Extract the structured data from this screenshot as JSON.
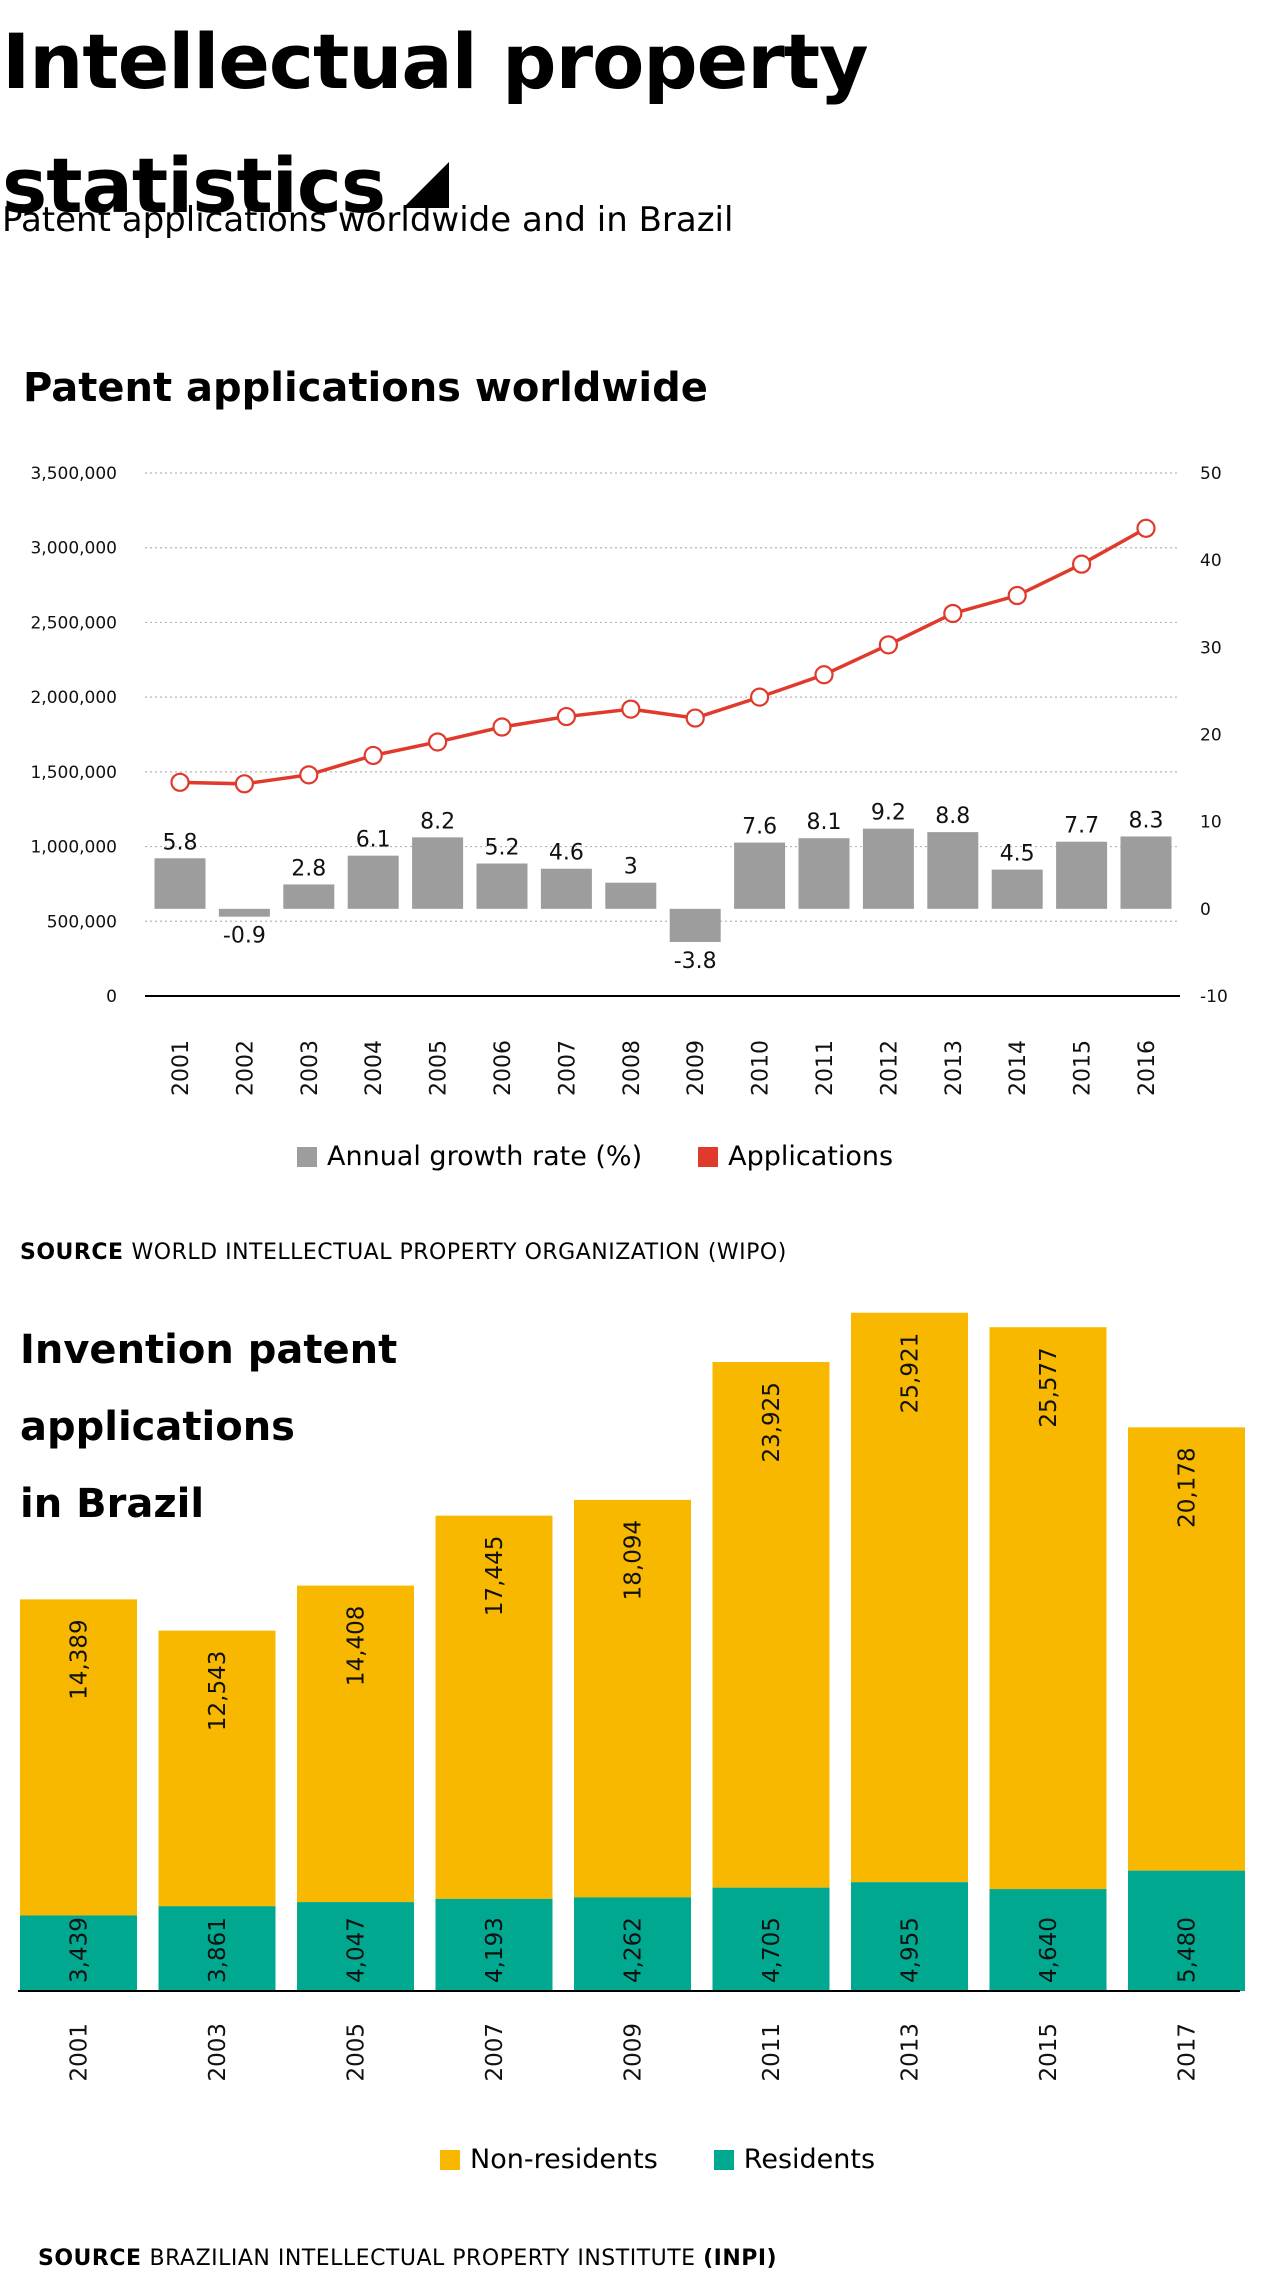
{
  "header": {
    "title": "Intellectual property statistics",
    "subtitle": "Patent applications worldwide and in Brazil"
  },
  "colors": {
    "growth_bar": "#9d9d9d",
    "applications_line": "#e03a2c",
    "non_residents": "#f8b800",
    "residents": "#00a88f"
  },
  "chart1": {
    "title": "Patent applications worldwide",
    "source_label": "SOURCE",
    "source_text": "WORLD INTELLECTUAL PROPERTY ORGANIZATION (WIPO)"
  },
  "chart2": {
    "title_lines": [
      "Invention patent",
      "applications",
      "in Brazil"
    ],
    "source_label": "SOURCE",
    "source_text": "BRAZILIAN INTELLECTUAL PROPERTY INSTITUTE",
    "source_bold": "(INPI)"
  },
  "chart_data": [
    {
      "type": "bar",
      "categories": [
        "2001",
        "2002",
        "2003",
        "2004",
        "2005",
        "2006",
        "2007",
        "2008",
        "2009",
        "2010",
        "2011",
        "2012",
        "2013",
        "2014",
        "2015",
        "2016"
      ],
      "series": [
        {
          "name": "Annual growth rate (%)",
          "type": "bar",
          "axis": "right",
          "values": [
            5.8,
            -0.9,
            2.8,
            6.1,
            8.2,
            5.2,
            4.6,
            3,
            -3.8,
            7.6,
            8.1,
            9.2,
            8.8,
            4.5,
            7.7,
            8.3
          ],
          "labels": [
            "5.8",
            "-0.9",
            "2.8",
            "6.1",
            "8.2",
            "5.2",
            "4.6",
            "3",
            "-3.8",
            "7.6",
            "8.1",
            "9.2",
            "8.8",
            "4.5",
            "7.7",
            "8.3"
          ]
        },
        {
          "name": "Applications",
          "type": "line",
          "axis": "left",
          "values": [
            1430000,
            1420000,
            1480000,
            1610000,
            1700000,
            1800000,
            1870000,
            1920000,
            1860000,
            2000000,
            2150000,
            2350000,
            2560000,
            2680000,
            2890000,
            3130000
          ]
        }
      ],
      "left_axis": {
        "ylim": [
          0,
          3500000
        ],
        "ticks": [
          "0",
          "500,000",
          "1,000,000",
          "1,500,000",
          "2,000,000",
          "2,500,000",
          "3,000,000",
          "3,500,000"
        ]
      },
      "right_axis": {
        "ylim": [
          -10,
          50
        ],
        "ticks": [
          "-10",
          "0",
          "10",
          "20",
          "30",
          "40",
          "50"
        ]
      },
      "grid": true,
      "legend": {
        "placement": "bottom",
        "items": [
          "Annual growth rate (%)",
          "Applications"
        ]
      }
    },
    {
      "type": "bar",
      "stacked": true,
      "categories": [
        "2001",
        "2003",
        "2005",
        "2007",
        "2009",
        "2011",
        "2013",
        "2015",
        "2017"
      ],
      "series": [
        {
          "name": "Residents",
          "values": [
            3439,
            3861,
            4047,
            4193,
            4262,
            4705,
            4955,
            4640,
            5480
          ],
          "labels": [
            "3,439",
            "3,861",
            "4,047",
            "4,193",
            "4,262",
            "4,705",
            "4,955",
            "4,640",
            "5,480"
          ]
        },
        {
          "name": "Non-residents",
          "values": [
            14389,
            12543,
            14408,
            17445,
            18094,
            23925,
            25921,
            25577,
            20178
          ],
          "labels": [
            "14,389",
            "12,543",
            "14,408",
            "17,445",
            "18,094",
            "23,925",
            "25,921",
            "25,577",
            "20,178"
          ]
        }
      ],
      "legend": {
        "placement": "bottom",
        "items": [
          "Non-residents",
          "Residents"
        ]
      }
    }
  ]
}
